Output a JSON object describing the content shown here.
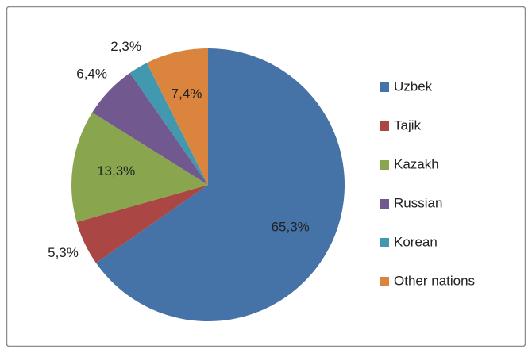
{
  "chart_data": {
    "type": "pie",
    "categories": [
      "Uzbek",
      "Tajik",
      "Kazakh",
      "Russian",
      "Korean",
      "Other nations"
    ],
    "values": [
      65.3,
      5.3,
      13.3,
      6.4,
      2.3,
      7.4
    ],
    "value_labels": [
      "65,3%",
      "5,3%",
      "13,3%",
      "6,4%",
      "2,3%",
      "7,4%"
    ],
    "colors": [
      "#4572a7",
      "#aa4643",
      "#89a54e",
      "#71588f",
      "#4198af",
      "#db843d"
    ],
    "legend": "right"
  }
}
